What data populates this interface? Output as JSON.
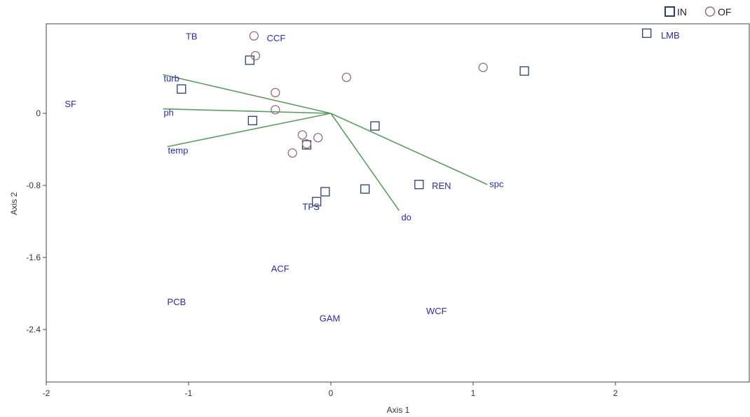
{
  "chart_data": {
    "type": "scatter",
    "xlabel": "Axis 1",
    "ylabel": "Axis 2",
    "xlim": [
      -2,
      3
    ],
    "ylim": [
      -3.0,
      1.0
    ],
    "x_ticks": [
      {
        "value": -2,
        "label": "-2"
      },
      {
        "value": -1,
        "label": "-1"
      },
      {
        "value": 0,
        "label": "0"
      },
      {
        "value": 1,
        "label": "1"
      },
      {
        "value": 2,
        "label": "2"
      }
    ],
    "y_ticks": [
      {
        "value": 0,
        "label": "0"
      },
      {
        "value": -0.8,
        "label": "-0.8"
      },
      {
        "value": -1.6,
        "label": "-1.6"
      },
      {
        "value": -2.4,
        "label": "-2.4"
      }
    ],
    "legend": {
      "placement": "top-right",
      "items": [
        {
          "label": "IN",
          "marker": "square",
          "color": "#2b3f6b"
        },
        {
          "label": "OF",
          "marker": "circle",
          "color": "#9b6a7a"
        }
      ]
    },
    "series": [
      {
        "name": "IN",
        "marker": "square",
        "color": "#2b3f6b",
        "points": [
          {
            "x": -1.05,
            "y": 0.27
          },
          {
            "x": -0.57,
            "y": 0.59
          },
          {
            "x": -0.55,
            "y": -0.08
          },
          {
            "x": -0.17,
            "y": -0.35
          },
          {
            "x": -0.1,
            "y": -0.98
          },
          {
            "x": -0.04,
            "y": -0.87
          },
          {
            "x": 0.24,
            "y": -0.84
          },
          {
            "x": 0.31,
            "y": -0.14
          },
          {
            "x": 0.62,
            "y": -0.79
          },
          {
            "x": 1.36,
            "y": 0.47
          },
          {
            "x": 2.22,
            "y": 0.89
          }
        ]
      },
      {
        "name": "OF",
        "marker": "circle",
        "color": "#9b6a7a",
        "points": [
          {
            "x": -0.54,
            "y": 0.86
          },
          {
            "x": -0.53,
            "y": 0.64
          },
          {
            "x": -0.39,
            "y": 0.23
          },
          {
            "x": -0.39,
            "y": 0.04
          },
          {
            "x": -0.27,
            "y": -0.44
          },
          {
            "x": -0.2,
            "y": -0.24
          },
          {
            "x": -0.17,
            "y": -0.34
          },
          {
            "x": -0.09,
            "y": -0.27
          },
          {
            "x": 0.11,
            "y": 0.4
          },
          {
            "x": 1.07,
            "y": 0.51
          }
        ]
      }
    ],
    "vectors": {
      "origin": [
        0,
        0
      ],
      "color": "#5e9b5e",
      "items": [
        {
          "label": "turb",
          "x": -1.18,
          "y": 0.43
        },
        {
          "label": "ph",
          "x": -1.18,
          "y": 0.05
        },
        {
          "label": "temp",
          "x": -1.15,
          "y": -0.37
        },
        {
          "label": "do",
          "x": 0.48,
          "y": -1.08
        },
        {
          "label": "spc",
          "x": 1.1,
          "y": -0.79
        }
      ]
    },
    "species_labels": [
      {
        "label": "SF",
        "x": -1.87,
        "y": 0.07
      },
      {
        "label": "TB",
        "x": -1.02,
        "y": 0.82
      },
      {
        "label": "CCF",
        "x": -0.45,
        "y": 0.8
      },
      {
        "label": "LMB",
        "x": 2.32,
        "y": 0.83
      },
      {
        "label": "REN",
        "x": 0.71,
        "y": -0.84
      },
      {
        "label": "TFS",
        "x": -0.2,
        "y": -1.07
      },
      {
        "label": "ACF",
        "x": -0.42,
        "y": -1.76
      },
      {
        "label": "PCB",
        "x": -1.15,
        "y": -2.13
      },
      {
        "label": "GAM",
        "x": -0.08,
        "y": -2.31
      },
      {
        "label": "WCF",
        "x": 0.67,
        "y": -2.23
      }
    ]
  }
}
